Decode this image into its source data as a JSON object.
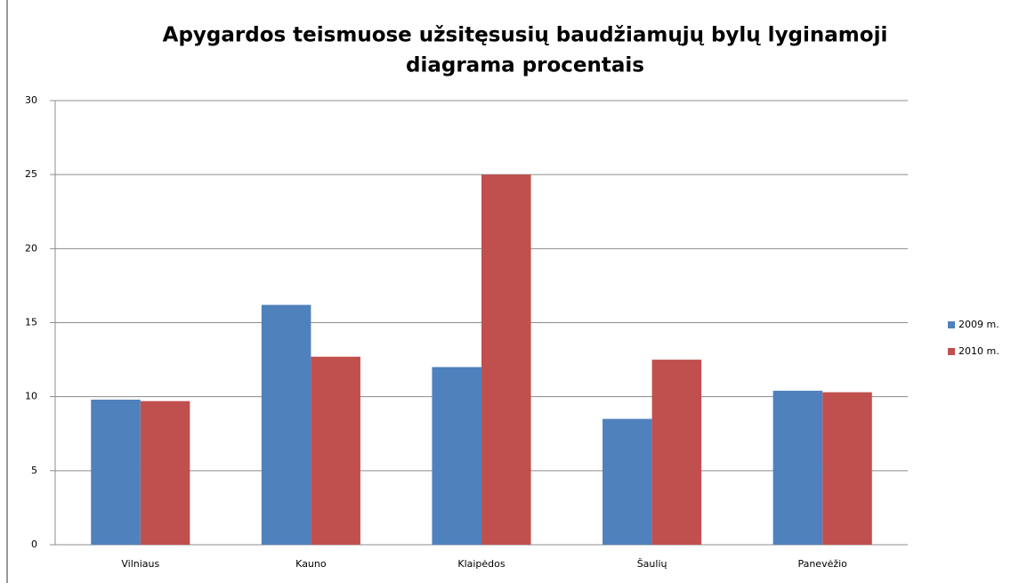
{
  "chart_data": {
    "type": "bar",
    "title": [
      "Apygardos teismuose užsitęsusių baudžiamųjų bylų lyginamoji",
      "diagrama procentais"
    ],
    "categories": [
      "Vilniaus",
      "Kauno",
      "Klaipėdos",
      "Šaulių",
      "Panevėžio"
    ],
    "series": [
      {
        "name": "2009 m.",
        "color": "#4f81bd",
        "values": [
          9.8,
          16.2,
          12.0,
          8.5,
          10.4
        ]
      },
      {
        "name": "2010 m.",
        "color": "#c0504d",
        "values": [
          9.7,
          12.7,
          25.0,
          12.5,
          10.3
        ]
      }
    ],
    "ylim": [
      0,
      30
    ],
    "yticks": [
      0,
      5,
      10,
      15,
      20,
      25,
      30
    ],
    "grid": true,
    "legend": "right"
  }
}
